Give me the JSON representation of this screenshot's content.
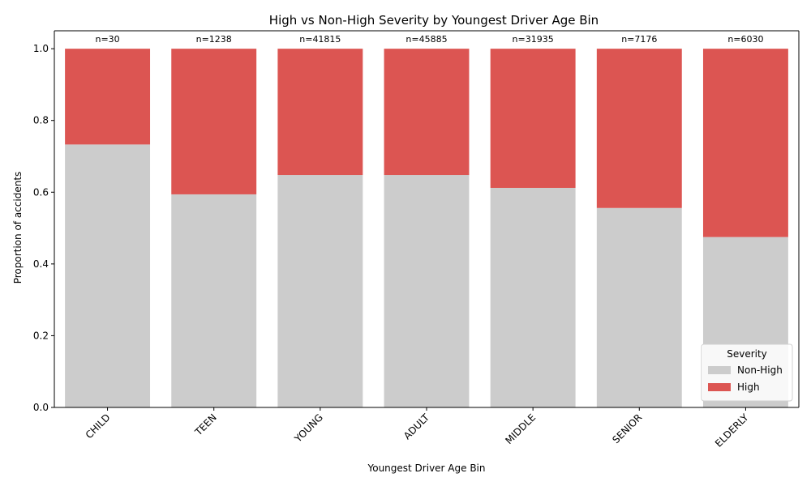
{
  "chart_data": {
    "type": "bar",
    "stacked": true,
    "normalized": true,
    "title": "High vs Non-High Severity by Youngest Driver Age Bin",
    "xlabel": "Youngest Driver Age Bin",
    "ylabel": "Proportion of accidents",
    "ylim": [
      0,
      1.05
    ],
    "yticks": [
      "0.0",
      "0.2",
      "0.4",
      "0.6",
      "0.8",
      "1.0"
    ],
    "categories": [
      "CHILD",
      "TEEN",
      "YOUNG",
      "ADULT",
      "MIDDLE",
      "SENIOR",
      "ELDERLY"
    ],
    "counts": [
      "n=30",
      "n=1238",
      "n=41815",
      "n=45885",
      "n=31935",
      "n=7176",
      "n=6030"
    ],
    "series": [
      {
        "name": "Non-High",
        "color": "#cccccc",
        "values": [
          0.733,
          0.594,
          0.648,
          0.648,
          0.612,
          0.556,
          0.475
        ]
      },
      {
        "name": "High",
        "color": "#dc5552",
        "values": [
          0.267,
          0.406,
          0.352,
          0.352,
          0.388,
          0.444,
          0.525
        ]
      }
    ],
    "legend": {
      "title": "Severity",
      "position": "bottom-right"
    },
    "grid": false
  }
}
